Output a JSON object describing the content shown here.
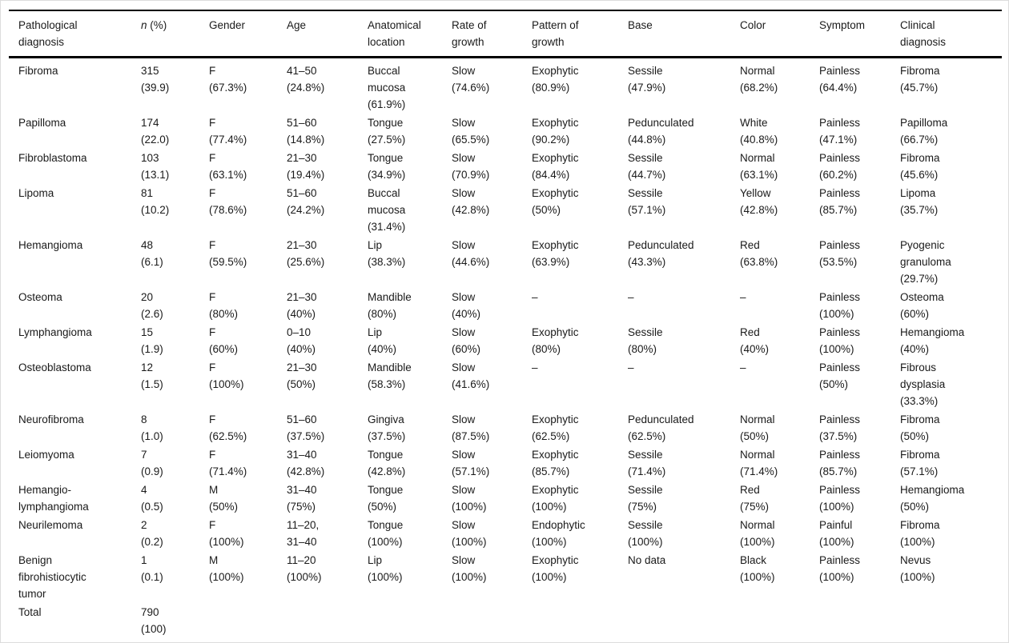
{
  "table": {
    "columns": [
      {
        "label": "Pathological\ndiagnosis"
      },
      {
        "italic": "n",
        "label": " (%)"
      },
      {
        "label": "Gender"
      },
      {
        "label": "Age"
      },
      {
        "label": "Anatomical\nlocation"
      },
      {
        "label": "Rate of\ngrowth"
      },
      {
        "label": "Pattern of\ngrowth"
      },
      {
        "label": "Base"
      },
      {
        "label": "Color"
      },
      {
        "label": "Symptom"
      },
      {
        "label": "Clinical\ndiagnosis"
      }
    ],
    "rows": [
      [
        "Fibroma",
        "315\n(39.9)",
        "F\n(67.3%)",
        "41–50\n(24.8%)",
        "Buccal\nmucosa\n(61.9%)",
        "Slow\n(74.6%)",
        "Exophytic\n(80.9%)",
        "Sessile\n(47.9%)",
        "Normal\n(68.2%)",
        "Painless\n(64.4%)",
        "Fibroma\n(45.7%)"
      ],
      [
        "Papilloma",
        "174\n(22.0)",
        "F\n(77.4%)",
        "51–60\n(14.8%)",
        "Tongue\n(27.5%)",
        "Slow\n(65.5%)",
        "Exophytic\n(90.2%)",
        "Pedunculated\n(44.8%)",
        "White\n(40.8%)",
        "Painless\n(47.1%)",
        "Papilloma\n(66.7%)"
      ],
      [
        "Fibroblastoma",
        "103\n(13.1)",
        "F\n(63.1%)",
        "21–30\n(19.4%)",
        "Tongue\n(34.9%)",
        "Slow\n(70.9%)",
        "Exophytic\n(84.4%)",
        "Sessile\n(44.7%)",
        "Normal\n(63.1%)",
        "Painless\n(60.2%)",
        "Fibroma\n(45.6%)"
      ],
      [
        "Lipoma",
        "81\n(10.2)",
        "F\n(78.6%)",
        "51–60\n(24.2%)",
        "Buccal\nmucosa\n(31.4%)",
        "Slow\n(42.8%)",
        "Exophytic\n(50%)",
        "Sessile\n(57.1%)",
        "Yellow\n(42.8%)",
        "Painless\n(85.7%)",
        "Lipoma\n(35.7%)"
      ],
      [
        "Hemangioma",
        "48\n(6.1)",
        "F\n(59.5%)",
        "21–30\n(25.6%)",
        "Lip\n(38.3%)",
        "Slow\n(44.6%)",
        "Exophytic\n(63.9%)",
        "Pedunculated\n(43.3%)",
        "Red\n(63.8%)",
        "Painless\n(53.5%)",
        "Pyogenic\ngranuloma\n(29.7%)"
      ],
      [
        "Osteoma",
        "20\n(2.6)",
        "F\n(80%)",
        "21–30\n(40%)",
        "Mandible\n(80%)",
        "Slow\n(40%)",
        "–",
        "–",
        "–",
        "Painless\n(100%)",
        "Osteoma\n(60%)"
      ],
      [
        "Lymphangioma",
        "15\n(1.9)",
        "F\n(60%)",
        "0–10\n(40%)",
        "Lip\n(40%)",
        "Slow\n(60%)",
        "Exophytic\n(80%)",
        "Sessile\n(80%)",
        "Red\n(40%)",
        "Painless\n(100%)",
        "Hemangioma\n(40%)"
      ],
      [
        "Osteoblastoma",
        "12\n(1.5)",
        "F\n(100%)",
        "21–30\n(50%)",
        "Mandible\n(58.3%)",
        "Slow\n(41.6%)",
        "–",
        "–",
        "–",
        "Painless\n(50%)",
        "Fibrous\ndysplasia\n(33.3%)"
      ],
      [
        "Neurofibroma",
        "8\n(1.0)",
        "F\n(62.5%)",
        "51–60\n(37.5%)",
        "Gingiva\n(37.5%)",
        "Slow\n(87.5%)",
        "Exophytic\n(62.5%)",
        "Pedunculated\n(62.5%)",
        "Normal\n(50%)",
        "Painless\n(37.5%)",
        "Fibroma\n(50%)"
      ],
      [
        "Leiomyoma",
        "7\n(0.9)",
        "F\n(71.4%)",
        "31–40\n(42.8%)",
        "Tongue\n(42.8%)",
        "Slow\n(57.1%)",
        "Exophytic\n(85.7%)",
        "Sessile\n(71.4%)",
        "Normal\n(71.4%)",
        "Painless\n(85.7%)",
        "Fibroma\n(57.1%)"
      ],
      [
        "Hemangio-\nlymphangioma",
        "4\n(0.5)",
        "M\n(50%)",
        "31–40\n(75%)",
        "Tongue\n(50%)",
        "Slow\n(100%)",
        "Exophytic\n(100%)",
        "Sessile\n(75%)",
        "Red\n(75%)",
        "Painless\n(100%)",
        "Hemangioma\n(50%)"
      ],
      [
        "Neurilemoma",
        "2\n(0.2)",
        "F\n(100%)",
        "11–20,\n31–40",
        "Tongue\n(100%)",
        "Slow\n(100%)",
        "Endophytic\n(100%)",
        "Sessile\n(100%)",
        "Normal\n(100%)",
        "Painful\n(100%)",
        "Fibroma\n(100%)"
      ],
      [
        "Benign\nfibrohistiocytic\ntumor",
        "1\n(0.1)",
        "M\n(100%)",
        "11–20\n(100%)",
        "Lip\n(100%)",
        "Slow\n(100%)",
        "Exophytic\n(100%)",
        "No data",
        "Black\n(100%)",
        "Painless\n(100%)",
        "Nevus\n(100%)"
      ],
      [
        "Total",
        "790\n(100)",
        "",
        "",
        "",
        "",
        "",
        "",
        "",
        "",
        ""
      ]
    ]
  }
}
